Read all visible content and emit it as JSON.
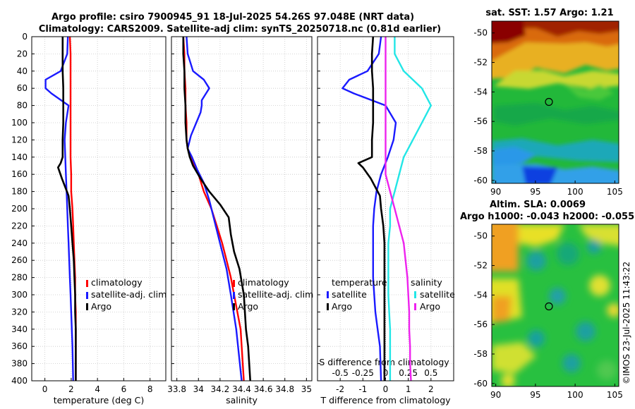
{
  "colors": {
    "red": "#ff0000",
    "blue": "#1a1aff",
    "black": "#000000",
    "cyan": "#22e6e6",
    "magenta": "#ee22ee",
    "grid": "#c8c8c8"
  },
  "title": {
    "line1": "Argo profile: csiro 7900945_91 18-Jul-2025 54.26S 97.048E (NRT data)",
    "line2": "Climatology: CARS2009. Satellite-adj clim: synTS_20250718.nc (0.81d earlier)"
  },
  "watermark": "©IMOS 23-Jul-2025 11:43:22",
  "chart_data": [
    {
      "type": "line",
      "id": "temperature",
      "xlabel": "temperature (deg C)",
      "ylabel": "",
      "xlim": [
        -1,
        9.2
      ],
      "ylim": [
        400,
        0
      ],
      "xticks": [
        "0",
        "2",
        "4",
        "6",
        "8"
      ],
      "xtick_values": [
        0,
        2,
        4,
        6,
        8
      ],
      "yticks": [
        "0",
        "20",
        "40",
        "60",
        "80",
        "100",
        "120",
        "140",
        "160",
        "180",
        "200",
        "220",
        "240",
        "260",
        "280",
        "300",
        "320",
        "340",
        "360",
        "380",
        "400"
      ],
      "ytick_values": [
        0,
        20,
        40,
        60,
        80,
        100,
        120,
        140,
        160,
        180,
        200,
        220,
        240,
        260,
        280,
        300,
        320,
        340,
        360,
        380,
        400
      ],
      "series": [
        {
          "name": "climatology",
          "color": "#ff0000",
          "x": [
            1.9,
            1.95,
            1.95,
            1.95,
            1.95,
            1.95,
            1.95,
            1.95,
            2.0,
            2.0,
            2.1,
            2.15,
            2.2,
            2.25,
            2.3,
            2.3,
            2.35,
            2.35,
            2.35,
            2.35,
            2.35
          ],
          "y": [
            0,
            20,
            40,
            60,
            80,
            100,
            120,
            140,
            160,
            180,
            200,
            220,
            240,
            260,
            280,
            300,
            320,
            340,
            360,
            380,
            400
          ]
        },
        {
          "name": "satellite-adj. clim",
          "color": "#1a1aff",
          "x": [
            1.75,
            1.7,
            1.2,
            0.05,
            0.05,
            0.5,
            1.8,
            1.6,
            1.5,
            1.55,
            1.6,
            1.65,
            1.7,
            1.75,
            1.8,
            1.85,
            1.9,
            1.95,
            2.0,
            2.05,
            2.1,
            2.15
          ],
          "y": [
            0,
            20,
            40,
            50,
            60,
            66,
            80,
            100,
            120,
            140,
            160,
            180,
            200,
            220,
            240,
            260,
            280,
            300,
            320,
            340,
            360,
            400
          ]
        },
        {
          "name": "Argo",
          "color": "#000000",
          "x": [
            1.35,
            1.35,
            1.35,
            1.4,
            1.4,
            1.4,
            1.35,
            1.35,
            1.2,
            1.0,
            1.3,
            1.8,
            1.9,
            2.0,
            2.1,
            2.2,
            2.25,
            2.3,
            2.3,
            2.35,
            2.35,
            2.35
          ],
          "y": [
            0,
            20,
            40,
            60,
            80,
            100,
            120,
            140,
            147,
            152,
            165,
            185,
            200,
            220,
            240,
            260,
            280,
            300,
            320,
            340,
            360,
            400
          ]
        }
      ],
      "legend": {
        "entries": [
          "climatology",
          "satellite-adj. clim",
          "Argo"
        ]
      }
    },
    {
      "type": "line",
      "id": "salinity",
      "xlabel": "salinity",
      "xlim": [
        33.75,
        35.05
      ],
      "ylim": [
        400,
        0
      ],
      "xticks": [
        "33.8",
        "34",
        "34.2",
        "34.4",
        "34.6",
        "34.8",
        "35"
      ],
      "xtick_values": [
        33.8,
        34.0,
        34.2,
        34.4,
        34.6,
        34.8,
        35.0
      ],
      "series": [
        {
          "name": "climatology",
          "color": "#ff0000",
          "x": [
            33.86,
            33.87,
            33.87,
            33.88,
            33.88,
            33.89,
            33.89,
            33.9,
            33.93,
            33.96,
            34.0,
            34.05,
            34.12,
            34.17,
            34.22,
            34.26,
            34.3,
            34.33,
            34.36,
            34.39,
            34.42
          ],
          "y": [
            0,
            20,
            40,
            60,
            80,
            100,
            120,
            130,
            140,
            150,
            160,
            180,
            200,
            220,
            240,
            260,
            280,
            300,
            320,
            340,
            400
          ]
        },
        {
          "name": "satellite-adj. clim",
          "color": "#1a1aff",
          "x": [
            33.89,
            33.9,
            33.95,
            34.05,
            34.1,
            34.07,
            34.03,
            34.03,
            34.02,
            33.98,
            33.93,
            33.9,
            33.94,
            33.99,
            34.05,
            34.1,
            34.14,
            34.18,
            34.22,
            34.26,
            34.3,
            34.35,
            34.4
          ],
          "y": [
            0,
            20,
            40,
            50,
            60,
            66,
            74,
            80,
            88,
            100,
            115,
            130,
            140,
            155,
            170,
            190,
            210,
            230,
            250,
            270,
            300,
            340,
            400
          ]
        },
        {
          "name": "Argo",
          "color": "#000000",
          "x": [
            33.86,
            33.86,
            33.87,
            33.87,
            33.88,
            33.88,
            33.89,
            33.9,
            33.92,
            33.95,
            34.02,
            34.1,
            34.2,
            34.28,
            34.3,
            34.33,
            34.38,
            34.42,
            34.43,
            34.44,
            34.46,
            34.48
          ],
          "y": [
            0,
            20,
            40,
            60,
            80,
            100,
            120,
            130,
            140,
            150,
            165,
            180,
            195,
            210,
            230,
            250,
            270,
            300,
            320,
            340,
            360,
            400
          ]
        }
      ],
      "legend": {
        "entries": [
          "climatology",
          "satellite-adj. clim",
          "Argo"
        ]
      }
    },
    {
      "type": "line",
      "id": "difference",
      "xlabel": "T difference from climatology",
      "top_label": "S difference from climatology",
      "xlim": [
        -3,
        3
      ],
      "ylim": [
        400,
        0
      ],
      "xticks": [
        "-2",
        "-1",
        "0",
        "1",
        "2"
      ],
      "xtick_values": [
        -2,
        -1,
        0,
        1,
        2
      ],
      "s_ticks": [
        "-0.5",
        "-0.25",
        "0",
        "0.25",
        "0.5"
      ],
      "s_tick_values": [
        -0.5,
        -0.25,
        0,
        0.25,
        0.5
      ],
      "series": [
        {
          "name": "T satellite",
          "color": "#1a1aff",
          "x": [
            -0.2,
            -0.3,
            -0.8,
            -1.6,
            -1.9,
            -1.4,
            0.0,
            0.45,
            0.35,
            0.1,
            -0.2,
            -0.4,
            -0.5,
            -0.55,
            -0.55,
            -0.55,
            -0.55,
            -0.5,
            -0.45,
            -0.35,
            -0.25,
            -0.2
          ],
          "y": [
            0,
            20,
            40,
            50,
            60,
            66,
            80,
            100,
            120,
            140,
            160,
            180,
            200,
            220,
            240,
            260,
            280,
            300,
            320,
            340,
            360,
            400
          ]
        },
        {
          "name": "T Argo",
          "color": "#000000",
          "x": [
            -0.55,
            -0.6,
            -0.6,
            -0.55,
            -0.55,
            -0.55,
            -0.6,
            -0.6,
            -1.2,
            -1.0,
            -0.65,
            -0.25,
            -0.2,
            -0.1,
            -0.05,
            -0.05,
            -0.05,
            -0.05,
            -0.05,
            -0.05,
            -0.05,
            -0.05
          ],
          "y": [
            0,
            20,
            40,
            60,
            80,
            100,
            120,
            140,
            147,
            152,
            165,
            185,
            200,
            220,
            240,
            260,
            280,
            300,
            320,
            340,
            360,
            400
          ]
        },
        {
          "name": "S satellite",
          "color": "#22e6e6",
          "x": [
            0.1,
            0.1,
            0.2,
            0.4,
            0.5,
            0.4,
            0.3,
            0.2,
            0.15,
            0.1,
            0.05,
            0.05,
            0.03,
            0.03,
            0.03,
            0.03,
            0.04,
            0.05,
            0.05,
            0.05,
            0.05
          ],
          "y": [
            0,
            20,
            40,
            60,
            80,
            100,
            120,
            140,
            160,
            180,
            200,
            220,
            240,
            260,
            280,
            300,
            320,
            340,
            360,
            380,
            400
          ]
        },
        {
          "name": "S Argo",
          "color": "#ee22ee",
          "x": [
            0.0,
            0.0,
            0.0,
            0.0,
            0.0,
            0.0,
            0.0,
            0.0,
            0.0,
            0.05,
            0.1,
            0.15,
            0.2,
            0.22,
            0.24,
            0.25,
            0.26,
            0.26,
            0.27,
            0.27,
            0.28
          ],
          "y": [
            0,
            20,
            40,
            60,
            80,
            100,
            120,
            140,
            160,
            180,
            200,
            220,
            240,
            260,
            280,
            300,
            320,
            340,
            360,
            380,
            400
          ]
        }
      ],
      "legend_left": {
        "title": "temperature",
        "entries": [
          "satellite",
          "Argo"
        ]
      },
      "legend_right": {
        "title": "salinity",
        "entries": [
          "satellite",
          "Argo"
        ]
      }
    },
    {
      "type": "heatmap",
      "id": "sst_map",
      "title": "sat. SST: 1.57 Argo: 1.21",
      "xlim": [
        89.5,
        105.5
      ],
      "ylim": [
        -60.2,
        -49.2
      ],
      "xticks": [
        "90",
        "95",
        "100",
        "105"
      ],
      "xtick_values": [
        90,
        95,
        100,
        105
      ],
      "yticks": [
        "-50",
        "-52",
        "-54",
        "-56",
        "-58",
        "-60"
      ],
      "ytick_values": [
        -50,
        -52,
        -54,
        -56,
        -58,
        -60
      ],
      "marker": {
        "lon": 97.05,
        "lat": -54.26
      }
    },
    {
      "type": "heatmap",
      "id": "sla_map",
      "title": "Altim. SLA: 0.0069",
      "subtitle": "Argo h1000: -0.043 h2000: -0.055",
      "xlim": [
        89.5,
        105.5
      ],
      "ylim": [
        -60.2,
        -49.2
      ],
      "xticks": [
        "90",
        "95",
        "100",
        "105"
      ],
      "xtick_values": [
        90,
        95,
        100,
        105
      ],
      "yticks": [
        "-50",
        "-52",
        "-54",
        "-56",
        "-58",
        "-60"
      ],
      "ytick_values": [
        -50,
        -52,
        -54,
        -56,
        -58,
        -60
      ],
      "marker": {
        "lon": 97.05,
        "lat": -54.26
      }
    }
  ]
}
